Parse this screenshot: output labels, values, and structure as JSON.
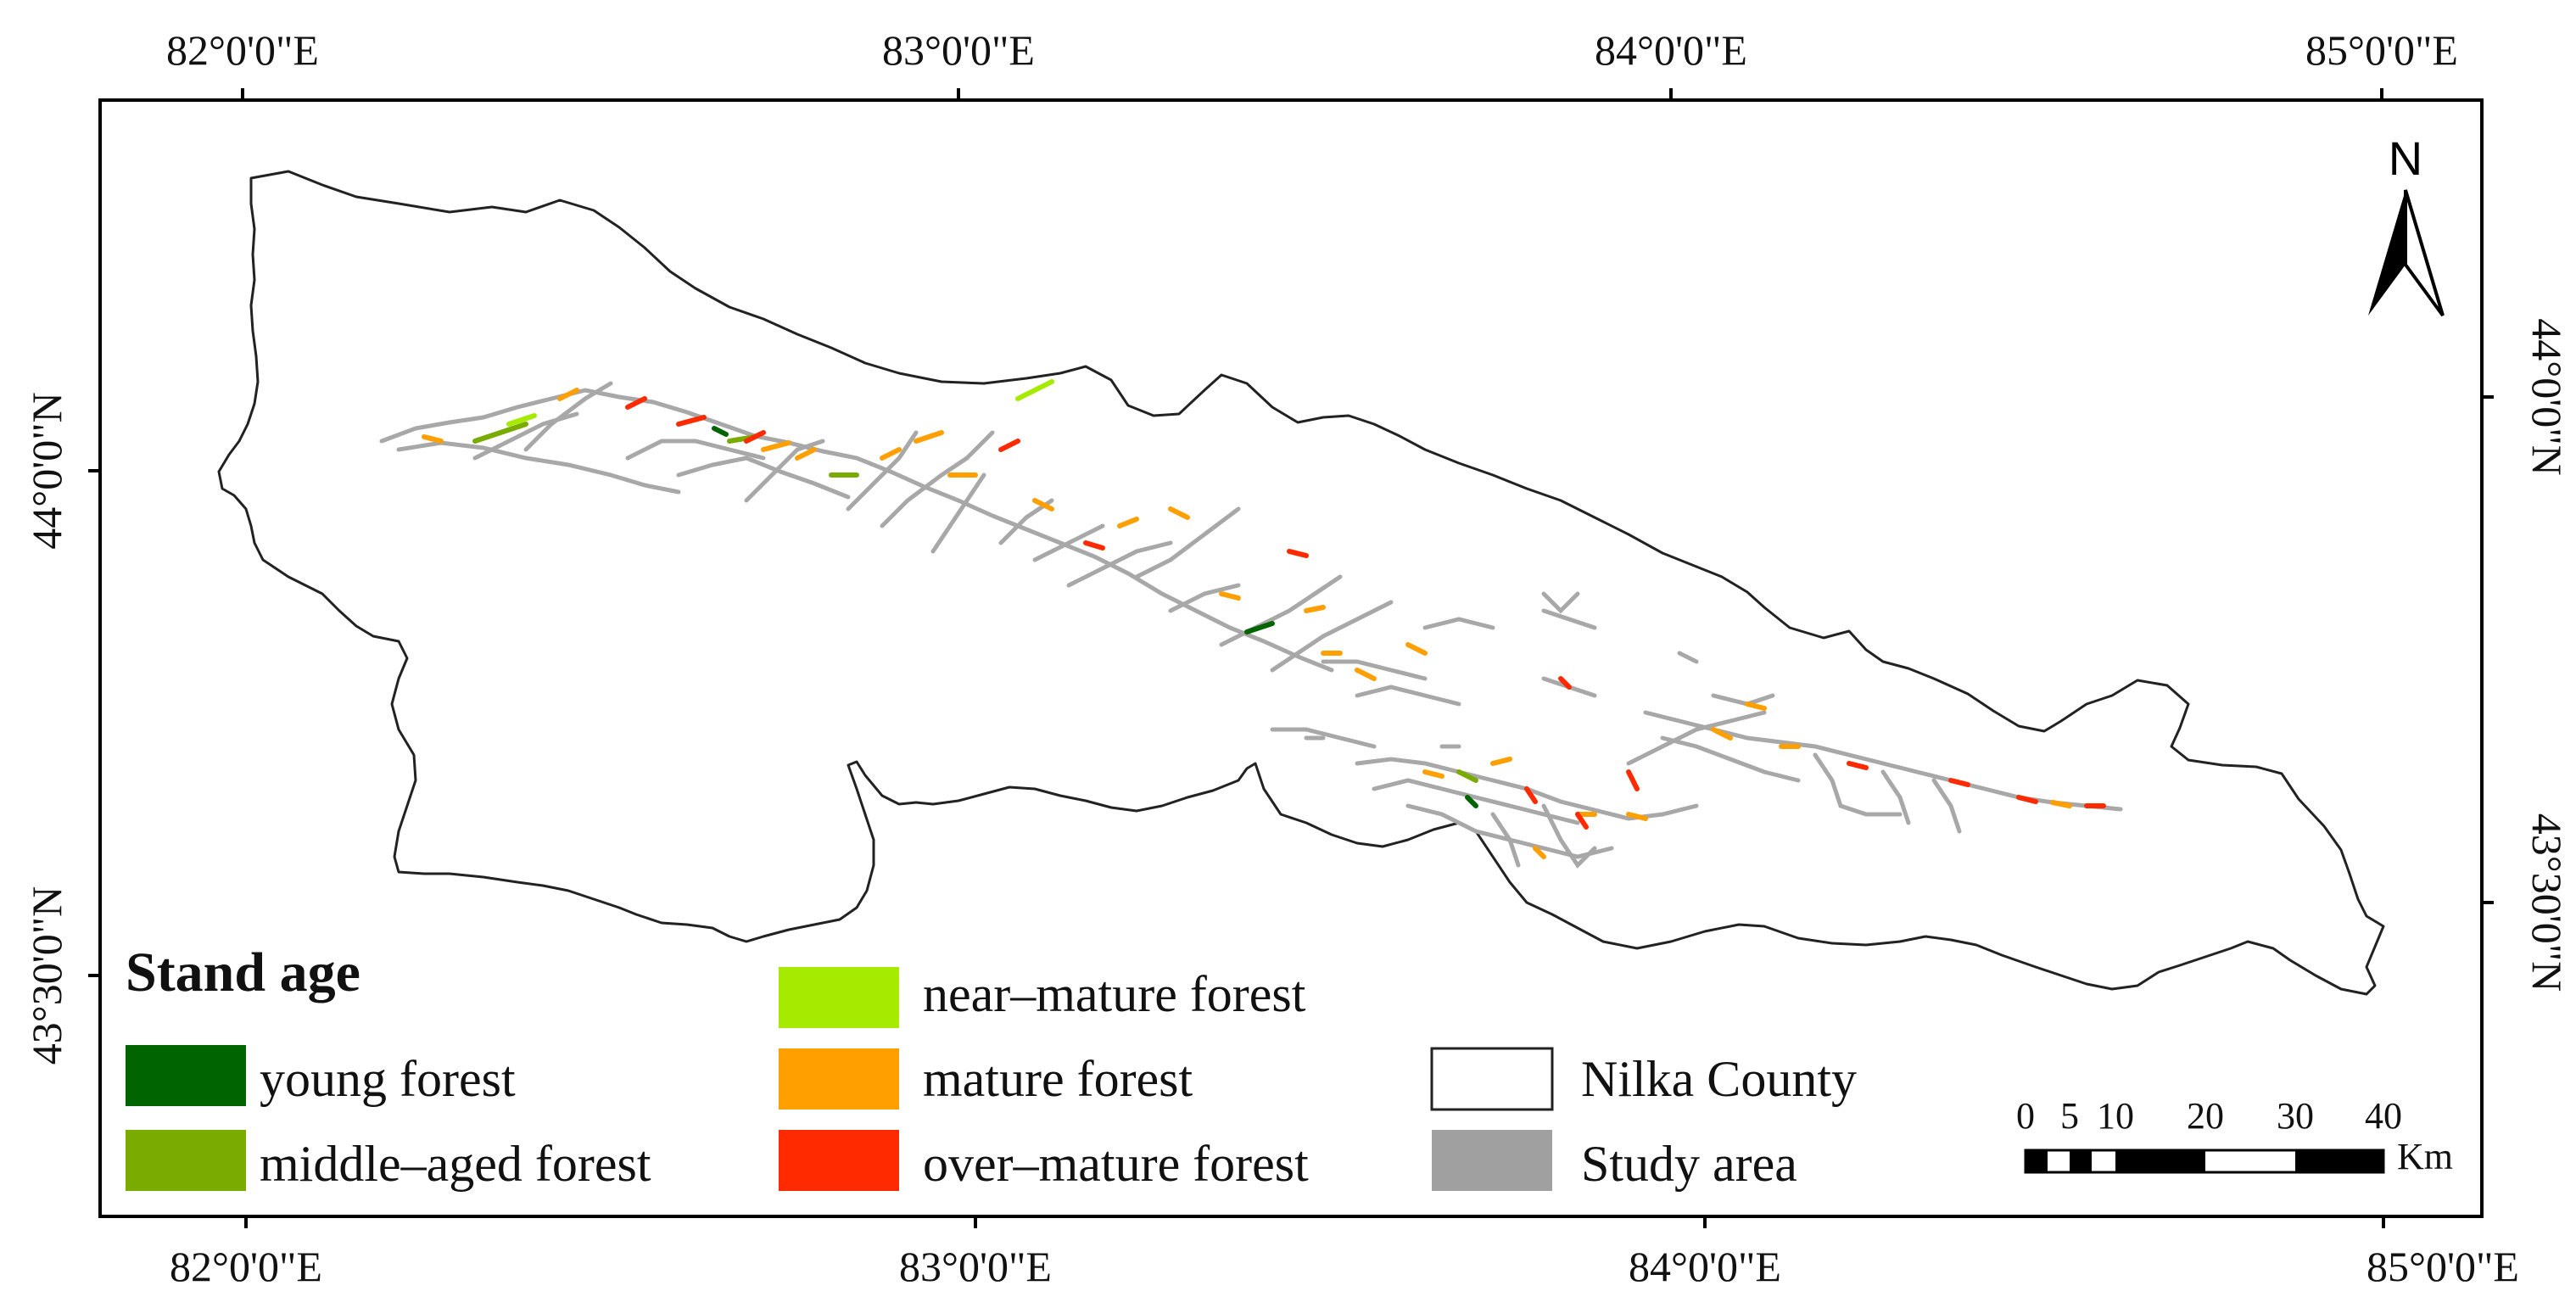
{
  "map": {
    "top_longitudes": [
      "82°0'0\"E",
      "83°0'0\"E",
      "84°0'0\"E",
      "85°0'0\"E"
    ],
    "bottom_longitudes": [
      "82°0'0\"E",
      "83°0'0\"E",
      "84°0'0\"E",
      "85°0'0\"E"
    ],
    "left_latitudes": [
      "44°0'0\"N",
      "43°30'0\"N"
    ],
    "right_latitudes": [
      "44°0'0\"N",
      "43°30'0\"N"
    ],
    "north_label": "N"
  },
  "legend": {
    "title": "Stand age",
    "items": [
      {
        "label": "young forest",
        "color": "#006400"
      },
      {
        "label": "middle–aged forest",
        "color": "#7aab00"
      },
      {
        "label": "near–mature forest",
        "color": "#a6ea00"
      },
      {
        "label": "mature forest",
        "color": "#ff9f00"
      },
      {
        "label": "over–mature forest",
        "color": "#ff2a00"
      },
      {
        "label": "Nilka County",
        "color": "#ffffff"
      },
      {
        "label": "Study area",
        "color": "#a0a0a0"
      }
    ]
  },
  "scale_bar": {
    "ticks": [
      "0",
      "5",
      "10",
      "20",
      "30",
      "40"
    ],
    "unit": "Km"
  }
}
